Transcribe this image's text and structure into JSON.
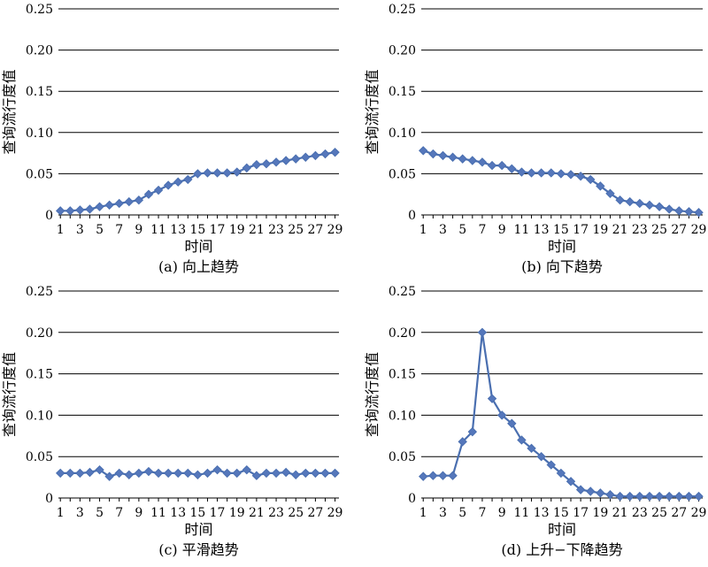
{
  "chart_data": [
    {
      "type": "line",
      "caption": "(a) 向上趋势",
      "xlabel": "时间",
      "ylabel": "查询流行度值",
      "ylim": [
        0,
        0.25
      ],
      "yticks": [
        "0",
        "0.05",
        "0.10",
        "0.15",
        "0.20",
        "0.25"
      ],
      "xticks": [
        "1",
        "3",
        "5",
        "7",
        "9",
        "11",
        "13",
        "15",
        "17",
        "19",
        "21",
        "23",
        "25",
        "27",
        "29"
      ],
      "grid": true,
      "series": [
        {
          "x": [
            1,
            2,
            3,
            4,
            5,
            6,
            7,
            8,
            9,
            10,
            11,
            12,
            13,
            14,
            15,
            16,
            17,
            18,
            19,
            20,
            21,
            22,
            23,
            24,
            25,
            26,
            27,
            28,
            29
          ],
          "values": [
            0.005,
            0.005,
            0.006,
            0.007,
            0.01,
            0.012,
            0.014,
            0.016,
            0.018,
            0.025,
            0.03,
            0.036,
            0.04,
            0.043,
            0.05,
            0.051,
            0.051,
            0.051,
            0.052,
            0.057,
            0.061,
            0.062,
            0.064,
            0.066,
            0.068,
            0.07,
            0.072,
            0.074,
            0.076
          ]
        }
      ]
    },
    {
      "type": "line",
      "caption": "(b) 向下趋势",
      "xlabel": "时间",
      "ylabel": "查询流行度值",
      "ylim": [
        0,
        0.25
      ],
      "yticks": [
        "0",
        "0.05",
        "0.10",
        "0.15",
        "0.20",
        "0.25"
      ],
      "xticks": [
        "1",
        "3",
        "5",
        "7",
        "9",
        "11",
        "13",
        "15",
        "17",
        "19",
        "21",
        "23",
        "25",
        "27",
        "29"
      ],
      "grid": true,
      "series": [
        {
          "x": [
            1,
            2,
            3,
            4,
            5,
            6,
            7,
            8,
            9,
            10,
            11,
            12,
            13,
            14,
            15,
            16,
            17,
            18,
            19,
            20,
            21,
            22,
            23,
            24,
            25,
            26,
            27,
            28,
            29
          ],
          "values": [
            0.078,
            0.074,
            0.072,
            0.07,
            0.068,
            0.066,
            0.064,
            0.06,
            0.06,
            0.056,
            0.052,
            0.051,
            0.051,
            0.051,
            0.05,
            0.049,
            0.047,
            0.043,
            0.035,
            0.026,
            0.018,
            0.016,
            0.014,
            0.012,
            0.01,
            0.007,
            0.005,
            0.004,
            0.003
          ]
        }
      ]
    },
    {
      "type": "line",
      "caption": "(c) 平滑趋势",
      "xlabel": "时间",
      "ylabel": "查询流行度值",
      "ylim": [
        0,
        0.25
      ],
      "yticks": [
        "0",
        "0.05",
        "0.10",
        "0.15",
        "0.20",
        "0.25"
      ],
      "xticks": [
        "1",
        "3",
        "5",
        "7",
        "9",
        "11",
        "13",
        "15",
        "17",
        "19",
        "21",
        "23",
        "25",
        "27",
        "29"
      ],
      "grid": true,
      "series": [
        {
          "x": [
            1,
            2,
            3,
            4,
            5,
            6,
            7,
            8,
            9,
            10,
            11,
            12,
            13,
            14,
            15,
            16,
            17,
            18,
            19,
            20,
            21,
            22,
            23,
            24,
            25,
            26,
            27,
            28,
            29
          ],
          "values": [
            0.03,
            0.03,
            0.03,
            0.031,
            0.034,
            0.026,
            0.03,
            0.028,
            0.03,
            0.032,
            0.03,
            0.03,
            0.03,
            0.03,
            0.028,
            0.03,
            0.034,
            0.03,
            0.03,
            0.034,
            0.027,
            0.03,
            0.03,
            0.031,
            0.028,
            0.03,
            0.03,
            0.03,
            0.03
          ]
        }
      ]
    },
    {
      "type": "line",
      "caption": "(d) 上升−下降趋势",
      "xlabel": "时间",
      "ylabel": "查询流行度值",
      "ylim": [
        0,
        0.25
      ],
      "yticks": [
        "0",
        "0.05",
        "0.10",
        "0.15",
        "0.20",
        "0.25"
      ],
      "xticks": [
        "1",
        "3",
        "5",
        "7",
        "9",
        "11",
        "13",
        "15",
        "17",
        "19",
        "21",
        "23",
        "25",
        "27",
        "29"
      ],
      "grid": true,
      "series": [
        {
          "x": [
            1,
            2,
            3,
            4,
            5,
            6,
            7,
            8,
            9,
            10,
            11,
            12,
            13,
            14,
            15,
            16,
            17,
            18,
            19,
            20,
            21,
            22,
            23,
            24,
            25,
            26,
            27,
            28,
            29
          ],
          "values": [
            0.026,
            0.027,
            0.027,
            0.027,
            0.068,
            0.08,
            0.2,
            0.12,
            0.1,
            0.09,
            0.07,
            0.06,
            0.05,
            0.04,
            0.03,
            0.02,
            0.01,
            0.008,
            0.006,
            0.004,
            0.002,
            0.002,
            0.002,
            0.002,
            0.002,
            0.002,
            0.002,
            0.002,
            0.002
          ]
        }
      ]
    }
  ]
}
